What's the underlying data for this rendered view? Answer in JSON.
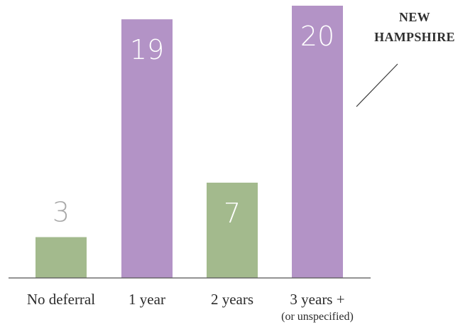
{
  "chart_data": {
    "type": "bar",
    "categories": [
      "No deferral",
      "1 year",
      "2 years",
      "3 years +"
    ],
    "category_sublabels": [
      "",
      "",
      "",
      "(or unspecified)"
    ],
    "values": [
      3,
      19,
      7,
      20
    ],
    "bar_colors": [
      "#a3ba8d",
      "#b393c6",
      "#a3ba8d",
      "#b393c6"
    ],
    "value_label_colors": [
      "#a8a8a8",
      "#ffffff",
      "#ffffff",
      "#ffffff"
    ],
    "annotation_lines": [
      "NEW",
      "HAMPSHIRE"
    ],
    "ylim": [
      0,
      20
    ],
    "grid": false,
    "title": "",
    "xlabel": "",
    "ylabel": ""
  }
}
